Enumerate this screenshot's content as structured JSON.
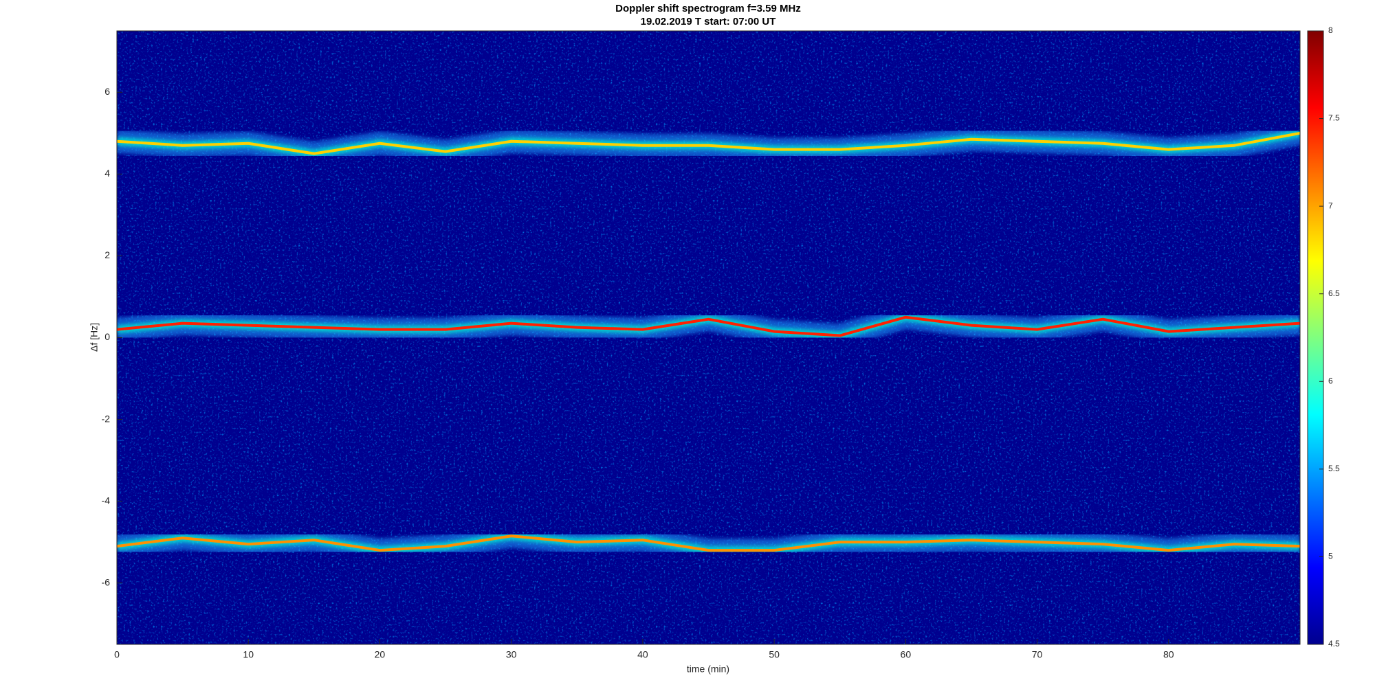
{
  "chart_data": {
    "type": "spectrogram",
    "title": "Doppler shift spectrogram f=3.59 MHz",
    "subtitle": "19.02.2019   T start: 07:00 UT",
    "x_label": "time (min)",
    "y_label": "Δf [Hz]",
    "x": [
      0,
      5,
      10,
      15,
      20,
      25,
      30,
      35,
      40,
      45,
      50,
      55,
      60,
      65,
      70,
      75,
      80,
      85,
      90
    ],
    "series": [
      {
        "color": "#ffd000",
        "values": [
          4.8,
          4.7,
          4.75,
          4.5,
          4.75,
          4.55,
          4.8,
          4.75,
          4.7,
          4.7,
          4.6,
          4.6,
          4.7,
          4.85,
          4.8,
          4.75,
          4.6,
          4.7,
          5.0
        ]
      },
      {
        "color": "#ff2000",
        "values": [
          0.2,
          0.35,
          0.3,
          0.25,
          0.2,
          0.2,
          0.35,
          0.25,
          0.2,
          0.45,
          0.15,
          0.05,
          0.5,
          0.3,
          0.2,
          0.45,
          0.15,
          0.25,
          0.35
        ]
      },
      {
        "color": "#ff9000",
        "values": [
          -5.1,
          -4.9,
          -5.05,
          -4.95,
          -5.2,
          -5.1,
          -4.85,
          -5.0,
          -4.95,
          -5.2,
          -5.2,
          -5.0,
          -5.0,
          -4.95,
          -5.0,
          -5.05,
          -5.2,
          -5.05,
          -5.1
        ]
      }
    ],
    "xlim": [
      0,
      90
    ],
    "xticks": [
      0,
      10,
      20,
      30,
      40,
      50,
      60,
      70,
      80
    ],
    "ylim": [
      -7.5,
      7.5
    ],
    "yticks": [
      -6,
      -4,
      -2,
      0,
      2,
      4,
      6
    ],
    "colormap": "jet",
    "clim": [
      4.5,
      8
    ],
    "cticks": [
      4.5,
      5,
      5.5,
      6,
      6.5,
      7,
      7.5,
      8
    ]
  }
}
